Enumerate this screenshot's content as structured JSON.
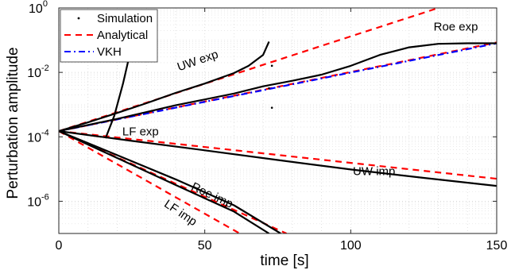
{
  "chart_data": {
    "type": "line",
    "xlabel": "time [s]",
    "ylabel": "Perturbation amplitude",
    "xlim": [
      0,
      150
    ],
    "ylim": [
      1e-07,
      1
    ],
    "yscale": "log",
    "grid": true,
    "legend_position": "top-left",
    "x_ticks": [
      0,
      50,
      100,
      150
    ],
    "x_tick_labels": [
      "0",
      "50",
      "100",
      "150"
    ],
    "y_ticks": [
      1e-06,
      0.0001,
      0.01,
      1
    ],
    "y_tick_labels": [
      {
        "base": "10",
        "exp": "-6"
      },
      {
        "base": "10",
        "exp": "-4"
      },
      {
        "base": "10",
        "exp": "-2"
      },
      {
        "base": "10",
        "exp": "0"
      }
    ],
    "legend": [
      {
        "name": "Simulation",
        "color": "#000000",
        "style": "dot"
      },
      {
        "name": "Analytical",
        "color": "#ff0000",
        "style": "dashed"
      },
      {
        "name": "VKH",
        "color": "#0000ff",
        "style": "dashdot"
      }
    ],
    "series": [
      {
        "legend": "Analytical",
        "color": "#ff0000",
        "style": "dashed",
        "x": [
          0,
          130
        ],
        "y": [
          0.00015,
          1.0
        ]
      },
      {
        "legend": "Analytical",
        "color": "#ff0000",
        "style": "dashed",
        "x": [
          0,
          150
        ],
        "y": [
          0.00015,
          0.085
        ]
      },
      {
        "legend": "Analytical",
        "color": "#ff0000",
        "style": "dashed",
        "x": [
          0,
          150
        ],
        "y": [
          0.00015,
          5e-06
        ]
      },
      {
        "legend": "Analytical",
        "color": "#ff0000",
        "style": "dashed",
        "x": [
          0,
          78
        ],
        "y": [
          0.00015,
          1e-07
        ]
      },
      {
        "legend": "Analytical",
        "color": "#ff0000",
        "style": "dashed",
        "x": [
          0,
          62
        ],
        "y": [
          0.00015,
          1e-07
        ]
      },
      {
        "legend": "VKH",
        "color": "#0000ff",
        "style": "dashdot",
        "x": [
          0,
          150
        ],
        "y": [
          0.00015,
          0.08
        ]
      },
      {
        "legend": "Simulation",
        "color": "#000000",
        "style": "solid",
        "x": [
          0,
          10,
          20,
          30,
          40,
          50,
          60,
          65,
          70,
          72
        ],
        "y": [
          0.00015,
          0.00028,
          0.00055,
          0.0011,
          0.0023,
          0.0045,
          0.0095,
          0.016,
          0.035,
          0.09
        ]
      },
      {
        "legend": "Simulation",
        "color": "#000000",
        "style": "solid",
        "x": [
          0,
          20,
          40,
          60,
          70,
          80,
          90,
          100,
          110,
          120,
          130,
          140,
          150
        ],
        "y": [
          0.00015,
          0.00036,
          0.00095,
          0.0022,
          0.0037,
          0.0055,
          0.0085,
          0.016,
          0.035,
          0.06,
          0.077,
          0.08,
          0.08
        ]
      },
      {
        "legend": "Simulation",
        "color": "#000000",
        "style": "solid",
        "x": [
          0,
          25,
          50,
          75,
          100,
          125,
          150
        ],
        "y": [
          0.00015,
          7.5e-05,
          3.8e-05,
          1.9e-05,
          9.7e-06,
          5.3e-06,
          3e-06
        ]
      },
      {
        "legend": "Simulation",
        "color": "#000000",
        "style": "solid",
        "x": [
          0,
          20,
          40,
          60,
          76
        ],
        "y": [
          0.00015,
          2.7e-05,
          4.8e-06,
          7.5e-07,
          1e-07
        ]
      },
      {
        "legend": "Simulation",
        "color": "#000000",
        "style": "solid",
        "x": [
          0,
          20,
          40,
          60,
          72
        ],
        "y": [
          0.00015,
          2.2e-05,
          3.2e-06,
          4.8e-07,
          1e-07
        ]
      },
      {
        "legend": "Simulation",
        "color": "#000000",
        "style": "solid",
        "x": [
          16,
          19,
          22,
          24
        ],
        "y": [
          9e-05,
          0.00045,
          0.0045,
          0.028
        ]
      }
    ],
    "points": [
      {
        "x": 73,
        "y": 0.016
      },
      {
        "x": 72,
        "y": 0.0032
      },
      {
        "x": 73,
        "y": 0.0008
      }
    ],
    "annotations": [
      {
        "text": "UW exp",
        "x": 48,
        "y": 0.018,
        "angle": -19
      },
      {
        "text": "Roe exp",
        "x": 136,
        "y": 0.2,
        "angle": 0
      },
      {
        "text": "LF exp",
        "x": 28,
        "y": 0.00011,
        "angle": 0
      },
      {
        "text": "UW imp",
        "x": 108,
        "y": 6.5e-06,
        "angle": 0
      },
      {
        "text": "Roe imp",
        "x": 52,
        "y": 1.2e-06,
        "angle": 25
      },
      {
        "text": "LF imp",
        "x": 41,
        "y": 3.5e-07,
        "angle": 34
      }
    ]
  }
}
